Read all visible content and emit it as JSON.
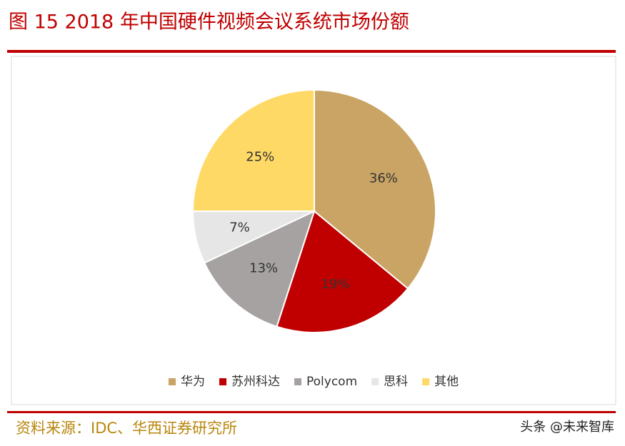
{
  "chart_data": {
    "type": "pie",
    "title": "图 15 2018 年中国硬件视频会议系统市场份额",
    "categories": [
      "华为",
      "苏州科达",
      "Polycom",
      "思科",
      "其他"
    ],
    "values": [
      36,
      19,
      13,
      7,
      25
    ],
    "value_labels": [
      "36%",
      "19%",
      "13%",
      "7%",
      "25%"
    ],
    "colors": [
      "#C9A464",
      "#C00000",
      "#A6A2A2",
      "#E6E6E6",
      "#FFD966"
    ],
    "legend": "bottom"
  },
  "source": "资料来源：IDC、华西证券研究所",
  "watermark": "头条 @未来智库"
}
